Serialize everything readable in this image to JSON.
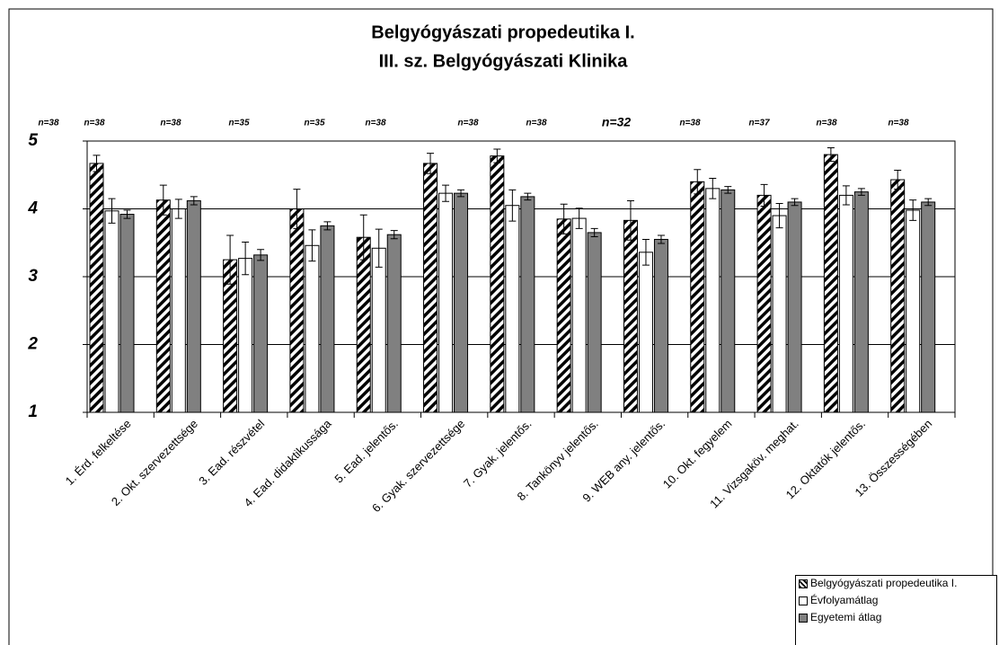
{
  "chart_data": {
    "type": "bar",
    "title": [
      "Belgyógyászati propedeutika I.",
      "III. sz. Belgyógyászati Klinika"
    ],
    "annotations": [
      "n=38",
      "n=38",
      "n=38",
      "n=35",
      "n=35",
      "n=38",
      "n=38",
      "n=38",
      "n=32",
      "n=38",
      "n=37",
      "n=38",
      "n=38"
    ],
    "categories": [
      "1. Érd. felkeltése",
      "2. Okt. szervezettsége",
      "3. Ead. részvétel",
      "4. Ead. didaktikussága",
      "5. Ead. jelentős.",
      "6. Gyak. szervezettsége",
      "7. Gyak. jelentős.",
      "8. Tankönyv jelentős.",
      "9. WEB any. jelentős.",
      "10. Okt. fegyelem",
      "11. Vizsgaköv. meghat.",
      "12. Oktatók jelentős.",
      "13. Összességében"
    ],
    "series": [
      {
        "name": "Belgyógyászati propedeutika I.",
        "color": "#000000",
        "pattern": "hatch",
        "values": [
          4.67,
          4.13,
          3.25,
          4.0,
          3.58,
          4.67,
          4.78,
          3.85,
          3.83,
          4.4,
          4.2,
          4.8,
          4.43
        ],
        "errors": [
          0.12,
          0.22,
          0.36,
          0.29,
          0.33,
          0.15,
          0.1,
          0.22,
          0.29,
          0.18,
          0.16,
          0.1,
          0.14
        ]
      },
      {
        "name": "Évfolyamátlag",
        "color": "#ffffff",
        "values": [
          3.97,
          4.0,
          3.27,
          3.46,
          3.42,
          4.23,
          4.05,
          3.86,
          3.36,
          4.3,
          3.9,
          4.2,
          3.98
        ],
        "errors": [
          0.18,
          0.14,
          0.24,
          0.23,
          0.28,
          0.12,
          0.23,
          0.15,
          0.19,
          0.15,
          0.18,
          0.14,
          0.15
        ]
      },
      {
        "name": "Egyetemi átlag",
        "color": "#808080",
        "values": [
          3.92,
          4.12,
          3.32,
          3.75,
          3.62,
          4.23,
          4.18,
          3.65,
          3.55,
          4.28,
          4.1,
          4.25,
          4.1
        ],
        "errors": [
          0.06,
          0.06,
          0.08,
          0.06,
          0.06,
          0.05,
          0.05,
          0.06,
          0.06,
          0.05,
          0.05,
          0.05,
          0.05
        ]
      }
    ],
    "ylim": [
      1,
      5
    ],
    "yticks": [
      1,
      2,
      3,
      4,
      5
    ],
    "grid": true
  }
}
